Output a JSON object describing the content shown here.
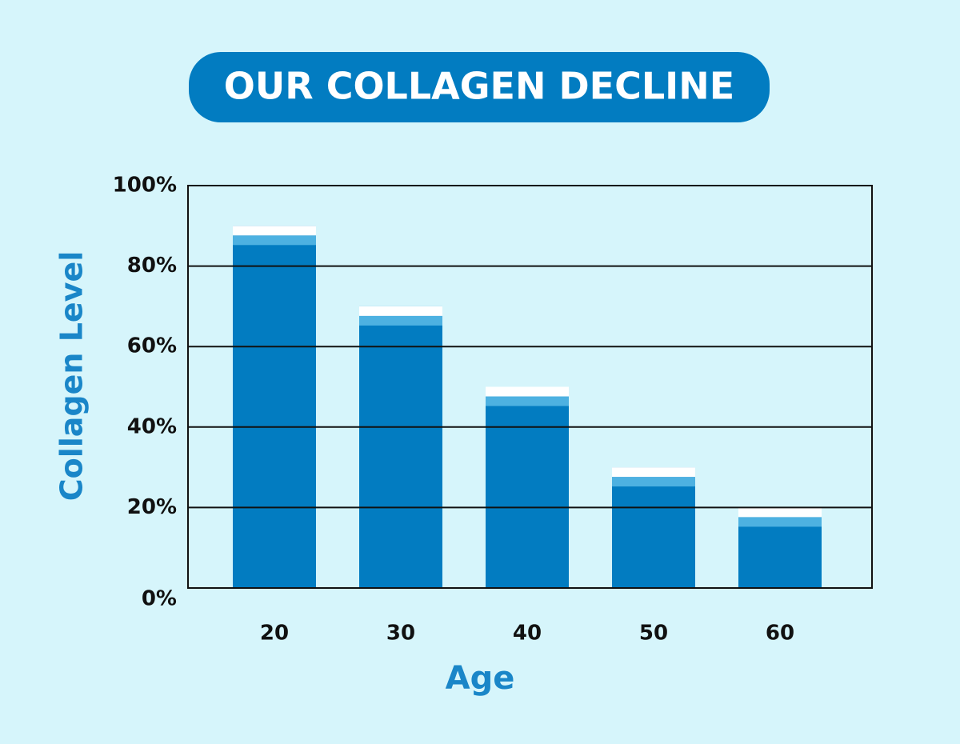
{
  "chart_data": {
    "type": "bar",
    "title": "OUR COLLAGEN DECLINE",
    "x_label": "Age",
    "y_label": "Collagen Level",
    "categories": [
      "20",
      "30",
      "40",
      "50",
      "60"
    ],
    "values": [
      90,
      70,
      50,
      30,
      20
    ],
    "color": "#027cc1",
    "ylim": [
      0,
      100
    ],
    "yticks": [
      {
        "value": 0,
        "label": "0%"
      },
      {
        "value": 20,
        "label": "20%"
      },
      {
        "value": 40,
        "label": "40%"
      },
      {
        "value": 60,
        "label": "60%"
      },
      {
        "value": 80,
        "label": "80%"
      },
      {
        "value": 100,
        "label": "100%"
      }
    ],
    "grid": true
  }
}
